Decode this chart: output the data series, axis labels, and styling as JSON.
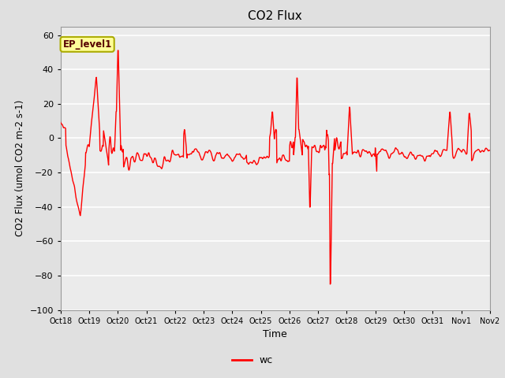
{
  "title": "CO2 Flux",
  "xlabel": "Time",
  "ylabel": "CO2 Flux (umol CO2 m-2 s-1)",
  "ylim": [
    -100,
    65
  ],
  "yticks": [
    -100,
    -80,
    -60,
    -40,
    -20,
    0,
    20,
    40,
    60
  ],
  "line_color": "#FF0000",
  "line_width": 1.0,
  "fig_bg_color": "#E0E0E0",
  "plot_bg_color": "#EBEBEB",
  "legend_label": "wc",
  "annotation_text": "EP_level1",
  "annotation_bg": "#FFFF99",
  "annotation_border": "#AAAA00",
  "xtick_labels": [
    "Oct 18",
    "Oct 19",
    "Oct 20",
    "Oct 21",
    "Oct 22",
    "Oct 23",
    "Oct 24",
    "Oct 25",
    "Oct 26",
    "Oct 27",
    "Oct 28",
    "Oct 29",
    "Oct 30",
    "Oct 31",
    "Nov 1",
    "Nov 2"
  ],
  "num_points": 1200,
  "seed": 99
}
